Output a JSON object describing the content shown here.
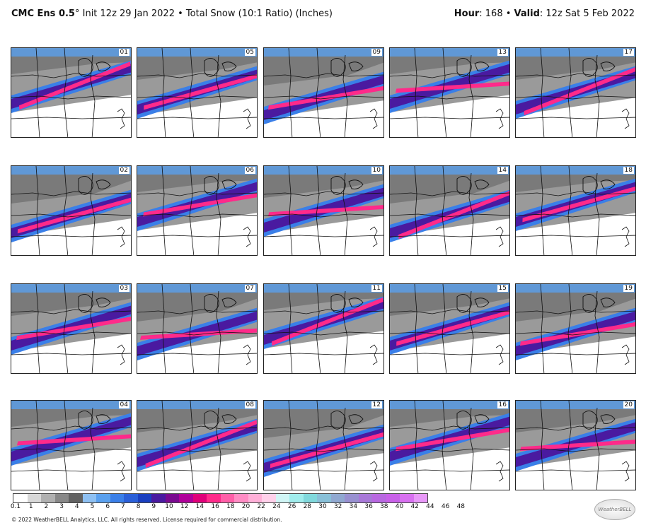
{
  "header": {
    "model": "CMC Ens 0.5",
    "degree": "°",
    "init": "Init 12z 29 Jan 2022",
    "bullet": "•",
    "product": "Total Snow (10:1 Ratio) (Inches)",
    "hour_label": "Hour",
    "hour_value": ": 168",
    "valid_label": "Valid",
    "valid_value": ": 12z Sat 5 Feb 2022"
  },
  "members": [
    [
      "01",
      "05",
      "09",
      "13",
      "17"
    ],
    [
      "02",
      "06",
      "10",
      "14",
      "18"
    ],
    [
      "03",
      "07",
      "11",
      "15",
      "19"
    ],
    [
      "04",
      "08",
      "12",
      "16",
      "20"
    ]
  ],
  "legend": {
    "ticks": [
      "0.1",
      "1",
      "2",
      "3",
      "4",
      "5",
      "6",
      "7",
      "8",
      "9",
      "10",
      "12",
      "14",
      "16",
      "18",
      "20",
      "22",
      "24",
      "26",
      "28",
      "30",
      "32",
      "34",
      "36",
      "38",
      "40",
      "42",
      "44",
      "46",
      "48"
    ],
    "colors": [
      "#ffffff",
      "#d8d8d8",
      "#b0b0b0",
      "#888888",
      "#626262",
      "#8ec0f2",
      "#5aa0ee",
      "#3a7fe8",
      "#2a5fd8",
      "#1a3fc0",
      "#4a1aa0",
      "#7a0a90",
      "#b0009a",
      "#e0007a",
      "#ff2a8a",
      "#ff5fa8",
      "#ff8cc4",
      "#ffb0d8",
      "#ffd0ea",
      "#d0f5f5",
      "#a0ecec",
      "#80d8dc",
      "#88c0d8",
      "#90a8d0",
      "#9890d0",
      "#a878d8",
      "#b868e0",
      "#c860e8",
      "#d870f0",
      "#e898f8"
    ]
  },
  "footer": "© 2022 WeatherBELL Analytics, LLC. All rights reserved. License required for commercial distribution.",
  "logo_text": "WeatherBELL"
}
